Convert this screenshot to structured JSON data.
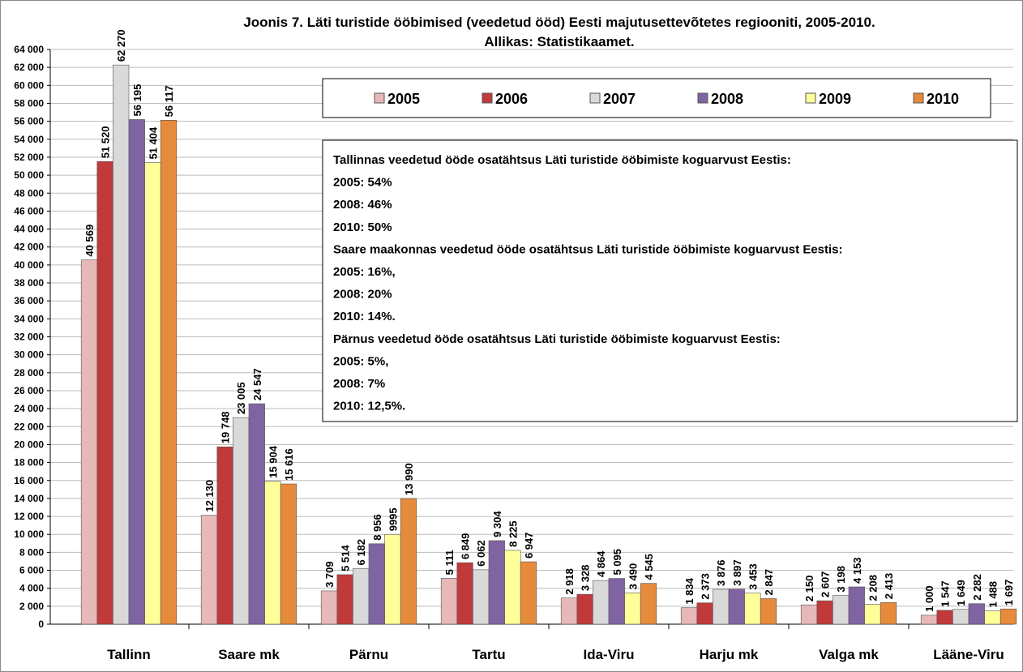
{
  "chart_data": {
    "type": "bar",
    "title": [
      "Joonis 7. Läti turistide ööbimised (veedetud ööd) Eesti majutusettevõtetes regiooniti, 2005-2010.",
      "Allikas: Statistikaamet."
    ],
    "categories": [
      "Tallinn",
      "Saare mk",
      "Pärnu",
      "Tartu",
      "Ida-Viru",
      "Harju mk",
      "Valga mk",
      "Lääne-Viru"
    ],
    "series": [
      {
        "name": "2005",
        "color": "#e6b8b7",
        "values": [
          40569,
          12130,
          3709,
          5111,
          2918,
          1834,
          2150,
          1000
        ],
        "value_labels": [
          "40 569",
          "12 130",
          "3 709",
          "5 111",
          "2 918",
          "1 834",
          "2 150",
          "1 000"
        ]
      },
      {
        "name": "2006",
        "color": "#c0393b",
        "values": [
          51520,
          19748,
          5514,
          6849,
          3328,
          2373,
          2607,
          1547
        ],
        "value_labels": [
          "51 520",
          "19 748",
          "5 514",
          "6 849",
          "3 328",
          "2 373",
          "2 607",
          "1 547"
        ]
      },
      {
        "name": "2007",
        "color": "#d9d9d9",
        "values": [
          62270,
          23005,
          6182,
          6062,
          4864,
          3876,
          3198,
          1649
        ],
        "value_labels": [
          "62 270",
          "23 005",
          "6 182",
          "6 062",
          "4 864",
          "3 876",
          "3 198",
          "1 649"
        ]
      },
      {
        "name": "2008",
        "color": "#8064a2",
        "values": [
          56195,
          24547,
          8956,
          9304,
          5095,
          3897,
          4153,
          2282
        ],
        "value_labels": [
          "56 195",
          "24 547",
          "8 956",
          "9 304",
          "5 095",
          "3 897",
          "4 153",
          "2 282"
        ]
      },
      {
        "name": "2009",
        "color": "#ffff99",
        "values": [
          51404,
          15904,
          9995,
          8225,
          3490,
          3453,
          2208,
          1488
        ],
        "value_labels": [
          "51 404",
          "15 904",
          "9995",
          "8 225",
          "3 490",
          "3 453",
          "2 208",
          "1 488"
        ]
      },
      {
        "name": "2010",
        "color": "#e68a3c",
        "values": [
          56117,
          15616,
          13990,
          6947,
          4545,
          2847,
          2413,
          1697
        ],
        "value_labels": [
          "56 117",
          "15 616",
          "13 990",
          "6 947",
          "4 545",
          "2 847",
          "2 413",
          "1 697"
        ]
      }
    ],
    "ylim": [
      0,
      64000
    ],
    "yticks": [
      0,
      {
        "value": 2000,
        "label": "2 000"
      },
      {
        "value": 4000,
        "label": "4 000"
      },
      {
        "value": 6000,
        "label": "6 000"
      },
      {
        "value": 8000,
        "label": "8 000"
      },
      {
        "value": 10000,
        "label": "10 000"
      },
      {
        "value": 12000,
        "label": "12 000"
      },
      {
        "value": 14000,
        "label": "14 000"
      },
      {
        "value": 16000,
        "label": "16 000"
      },
      {
        "value": 18000,
        "label": "18 000"
      },
      {
        "value": 20000,
        "label": "20 000"
      },
      {
        "value": 22000,
        "label": "22 000"
      },
      {
        "value": 24000,
        "label": "24 000"
      },
      {
        "value": 26000,
        "label": "26 000"
      },
      {
        "value": 28000,
        "label": "28 000"
      },
      {
        "value": 30000,
        "label": "30 000"
      },
      {
        "value": 32000,
        "label": "32 000"
      },
      {
        "value": 34000,
        "label": "34 000"
      },
      {
        "value": 36000,
        "label": "36 000"
      },
      {
        "value": 38000,
        "label": "38 000"
      },
      {
        "value": 40000,
        "label": "40 000"
      },
      {
        "value": 42000,
        "label": "42 000"
      },
      {
        "value": 44000,
        "label": "44 000"
      },
      {
        "value": 46000,
        "label": "46 000"
      },
      {
        "value": 48000,
        "label": "48 000"
      },
      {
        "value": 50000,
        "label": "50 000"
      },
      {
        "value": 52000,
        "label": "52 000"
      },
      {
        "value": 54000,
        "label": "54 000"
      },
      {
        "value": 56000,
        "label": "56 000"
      },
      {
        "value": 58000,
        "label": "58 000"
      },
      {
        "value": 60000,
        "label": "60 000"
      },
      {
        "value": 62000,
        "label": "62 000"
      },
      {
        "value": 64000,
        "label": "64 000"
      }
    ],
    "grid": true,
    "annotation": [
      "Tallinnas veedetud ööde osatähtsus Läti turistide ööbimiste koguarvust  Eestis:",
      "2005:  54%",
      "2008:  46%",
      "2010:  50%",
      "Saare maakonnas  veedetud ööde osatähtsus Läti turistide ööbimiste koguarvust  Eestis:",
      "2005:  16%,",
      "2008:  20%",
      "2010:  14%.",
      "Pärnus veedetud ööde osatähtsus Läti turistide ööbimiste koguarvust  Eestis:",
      "2005:  5%,",
      "2008:  7%",
      "2010:  12,5%."
    ]
  }
}
